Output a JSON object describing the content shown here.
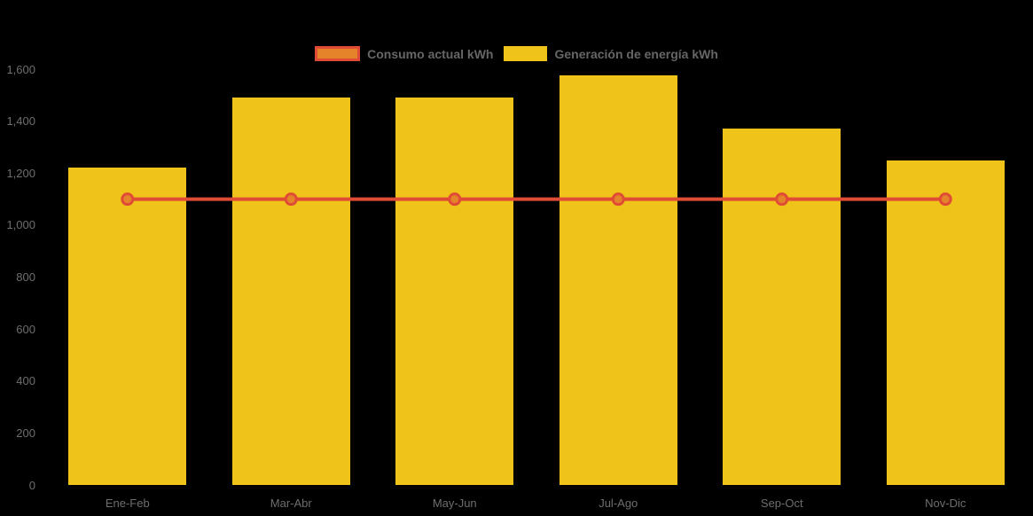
{
  "background_color": "#000000",
  "colors": {
    "bar_yellow": "#EFC31A",
    "line_red": "#E04B35",
    "marker_orange": "#E5832B",
    "tick_text": "#6E6E6E",
    "legend_text": "#666666"
  },
  "legend": {
    "items": [
      {
        "label": "Consumo actual kWh",
        "swatch": "line-swatch"
      },
      {
        "label": "Generación de energía kWh",
        "swatch": "bar-swatch"
      }
    ]
  },
  "chart_data": {
    "type": "bar",
    "title": "",
    "xlabel": "",
    "ylabel": "",
    "categories": [
      "Ene-Feb",
      "Mar-Abr",
      "May-Jun",
      "Jul-Ago",
      "Sep-Oct",
      "Nov-Dic"
    ],
    "series": [
      {
        "name": "Consumo actual kWh",
        "type": "line",
        "color": "#E04B35",
        "marker_fill": "#E5832B",
        "values": [
          1100,
          1100,
          1100,
          1100,
          1100,
          1100
        ]
      },
      {
        "name": "Generación de energía kWh",
        "type": "bar",
        "color": "#EFC31A",
        "values": [
          1220,
          1490,
          1490,
          1575,
          1370,
          1250
        ]
      }
    ],
    "ylim": [
      0,
      1600
    ],
    "ytick_interval": 200,
    "ytick_labels": [
      "0",
      "200",
      "400",
      "600",
      "800",
      "1,000",
      "1,200",
      "1,400",
      "1,600"
    ],
    "grid": false,
    "legend_position": "top"
  }
}
